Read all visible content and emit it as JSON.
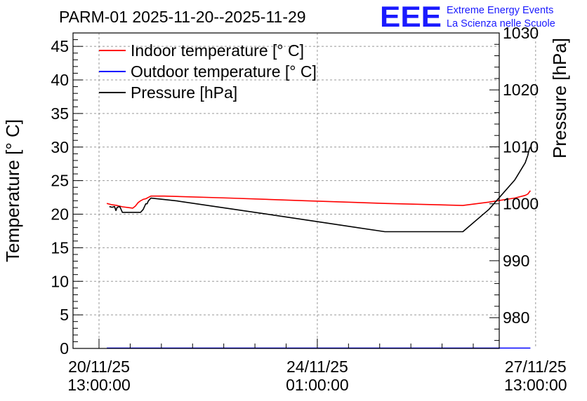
{
  "chart_data": {
    "type": "line",
    "title": "PARM-01 2025-11-20--2025-11-29",
    "logo": {
      "mark": "EEE",
      "line1": "Extreme Energy Events",
      "line2": "La Scienza nelle Scuole",
      "color": "#1a1aff"
    },
    "ylabel_left": "Temperature [° C]",
    "ylabel_right": "Pressure [hPa]",
    "y_left": {
      "range": [
        0,
        47
      ],
      "ticks": [
        0,
        5,
        10,
        15,
        20,
        25,
        30,
        35,
        40,
        45
      ],
      "tick_labels": [
        "0",
        "5",
        "10",
        "15",
        "20",
        "25",
        "30",
        "35",
        "40",
        "45"
      ]
    },
    "y_right": {
      "range": [
        974.6,
        1030
      ],
      "ticks": [
        980,
        990,
        1000,
        1010,
        1020,
        1030
      ],
      "tick_labels": [
        "980",
        "990",
        "1000",
        "1010",
        "1020",
        "1030"
      ]
    },
    "x": {
      "unit": "hours since 2025-11-20 13:00",
      "range": [
        -10,
        154
      ],
      "ticks": [
        0,
        84,
        168
      ],
      "tick_labels": [
        [
          "20/11/25",
          "13:00:00"
        ],
        [
          "24/11/25",
          "01:00:00"
        ],
        [
          "27/11/25",
          "13:00:00"
        ]
      ],
      "minor_step": 12
    },
    "grid": true,
    "legend": {
      "position": "top-left",
      "entries": [
        {
          "label": "Indoor temperature [° C]",
          "color": "#ff0000"
        },
        {
          "label": "Outdoor temperature [° C]",
          "color": "#0000ff"
        },
        {
          "label": "Pressure [hPa]",
          "color": "#000000"
        }
      ]
    },
    "series": [
      {
        "name": "Indoor temperature [° C]",
        "axis": "left",
        "color": "#ff0000",
        "points": [
          [
            3,
            21.6
          ],
          [
            5,
            21.4
          ],
          [
            7,
            21.3
          ],
          [
            9,
            21.1
          ],
          [
            11,
            21.0
          ],
          [
            13,
            20.9
          ],
          [
            14,
            21.2
          ],
          [
            15,
            21.7
          ],
          [
            16,
            22.0
          ],
          [
            17,
            22.2
          ],
          [
            18,
            22.3
          ],
          [
            19,
            22.5
          ],
          [
            20,
            22.7
          ],
          [
            22,
            22.7
          ],
          [
            25,
            22.7
          ],
          [
            50,
            22.4
          ],
          [
            80,
            22.0
          ],
          [
            110,
            21.6
          ],
          [
            130,
            21.4
          ],
          [
            140,
            21.3
          ],
          [
            150,
            21.8
          ],
          [
            160,
            22.4
          ],
          [
            164,
            22.8
          ],
          [
            165,
            23.0
          ],
          [
            166,
            23.5
          ]
        ]
      },
      {
        "name": "Outdoor temperature [° C]",
        "axis": "left",
        "color": "#0000ff",
        "points": [
          [
            3,
            0.05
          ],
          [
            166,
            0.05
          ]
        ]
      },
      {
        "name": "Pressure [hPa]",
        "axis": "right",
        "color": "#000000",
        "points": [
          [
            4,
            999.5
          ],
          [
            5,
            999.4
          ],
          [
            6,
            999.5
          ],
          [
            6.5,
            998.8
          ],
          [
            7,
            999.4
          ],
          [
            8,
            999.5
          ],
          [
            9,
            998.5
          ],
          [
            12,
            998.5
          ],
          [
            15,
            998.5
          ],
          [
            16,
            998.5
          ],
          [
            17,
            999.0
          ],
          [
            17.5,
            999.5
          ],
          [
            18,
            1000.0
          ],
          [
            18.5,
            1000.0
          ],
          [
            19,
            1000.5
          ],
          [
            20,
            1001.0
          ],
          [
            30,
            1000.5
          ],
          [
            60,
            998.5
          ],
          [
            85,
            996.8
          ],
          [
            110,
            995.1
          ],
          [
            140,
            995.1
          ],
          [
            150,
            999.0
          ],
          [
            160,
            1004.2
          ],
          [
            164,
            1007.2
          ],
          [
            165,
            1008.5
          ],
          [
            165.5,
            1009.5
          ],
          [
            166,
            1010.0
          ]
        ]
      }
    ]
  }
}
